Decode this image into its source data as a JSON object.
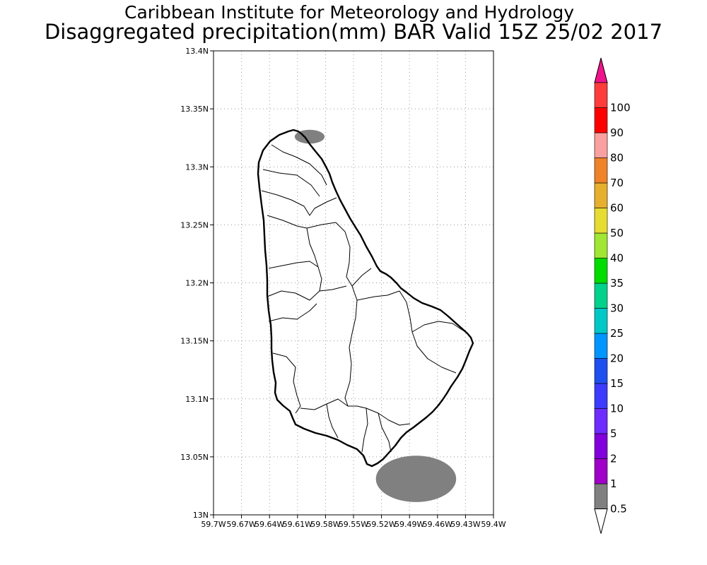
{
  "header": {
    "institution": "Caribbean Institute for Meteorology and Hydrology",
    "product": "Disaggregated precipitation(mm) BAR Valid 15Z 25/02 2017"
  },
  "map": {
    "lat_ticks": [
      {
        "value": 13.4,
        "label": "13.4N"
      },
      {
        "value": 13.35,
        "label": "13.35N"
      },
      {
        "value": 13.3,
        "label": "13.3N"
      },
      {
        "value": 13.25,
        "label": "13.25N"
      },
      {
        "value": 13.2,
        "label": "13.2N"
      },
      {
        "value": 13.15,
        "label": "13.15N"
      },
      {
        "value": 13.1,
        "label": "13.1N"
      },
      {
        "value": 13.05,
        "label": "13.05N"
      },
      {
        "value": 13.0,
        "label": "13N"
      }
    ],
    "lon_ticks": [
      {
        "value": -59.7,
        "label": "59.7W"
      },
      {
        "value": -59.67,
        "label": "59.67W"
      },
      {
        "value": -59.64,
        "label": "59.64W"
      },
      {
        "value": -59.61,
        "label": "59.61W"
      },
      {
        "value": -59.58,
        "label": "59.58W"
      },
      {
        "value": -59.55,
        "label": "59.55W"
      },
      {
        "value": -59.52,
        "label": "59.52W"
      },
      {
        "value": -59.49,
        "label": "59.49W"
      },
      {
        "value": -59.46,
        "label": "59.46W"
      },
      {
        "value": -59.43,
        "label": "59.43W"
      },
      {
        "value": -59.4,
        "label": "59.4W"
      }
    ],
    "lat_range": [
      13.0,
      13.4
    ],
    "lon_range": [
      -59.7,
      -59.4
    ],
    "grid": "dotted",
    "precip_areas": [
      {
        "lon": -59.597,
        "lat": 13.326,
        "lon_radius": 0.016,
        "lat_radius": 0.006,
        "range": "0.5-1"
      },
      {
        "lon": -59.483,
        "lat": 13.031,
        "lon_radius": 0.043,
        "lat_radius": 0.02,
        "range": "0.5-1"
      }
    ]
  },
  "legend": {
    "colors": [
      "#808080",
      "#a000c8",
      "#8200dc",
      "#6e2cff",
      "#3c3cff",
      "#1e50f0",
      "#0096ff",
      "#00c8c8",
      "#00d28c",
      "#00dc00",
      "#a0e632",
      "#e6dc32",
      "#e6af2d",
      "#f08228",
      "#faa0a0",
      "#ff0000",
      "#ff3c3c"
    ],
    "top_color": "#f0148c",
    "bottom_color": "#ffffff",
    "labels": [
      "0.5",
      "1",
      "2",
      "5",
      "10",
      "15",
      "20",
      "25",
      "30",
      "35",
      "40",
      "50",
      "60",
      "70",
      "80",
      "90",
      "100"
    ]
  }
}
